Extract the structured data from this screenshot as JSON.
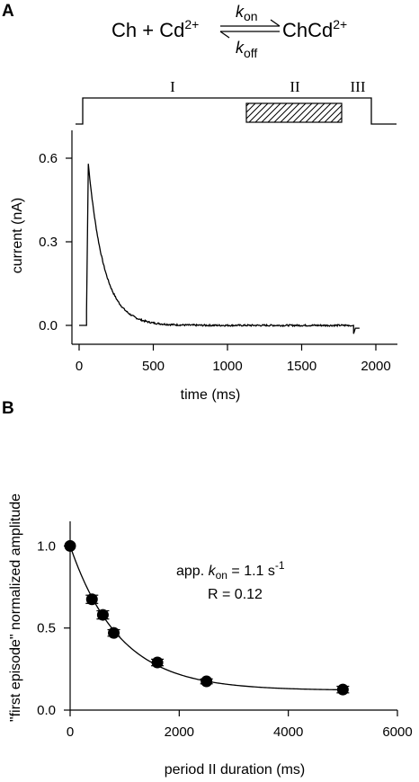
{
  "panels": {
    "a": {
      "label": "A"
    },
    "b": {
      "label": "B"
    }
  },
  "scheme": {
    "left": "Ch + Cd",
    "left_sup": "2+",
    "right": "ChCd",
    "right_sup": "2+",
    "k": "k",
    "on_sub": "on",
    "off_sub": "off"
  },
  "protocol": {
    "period_labels": [
      "I",
      "II",
      "III"
    ]
  },
  "chart_data": [
    {
      "type": "line",
      "panel": "A",
      "xlabel": "time (ms)",
      "ylabel": "current (nA)",
      "xlim": [
        -80,
        2000
      ],
      "ylim": [
        -0.06,
        0.7
      ],
      "xticks": [
        0,
        500,
        1000,
        1500,
        2000
      ],
      "yticks": [
        0.0,
        0.3,
        0.6
      ],
      "ytick_labels": [
        "0.0",
        "0.3",
        "0.6"
      ],
      "series": [
        {
          "baseline_before": 0.0,
          "step_on_ms": 50,
          "peak_ms": 62,
          "peak_nA": 0.58,
          "decay_tau_ms": 105,
          "step_off_ms": 1850,
          "end_ms": 1890,
          "points": [
            [
              0,
              0.0
            ],
            [
              50,
              0.0
            ],
            [
              50,
              0.05
            ],
            [
              62,
              0.58
            ],
            [
              100,
              0.4
            ],
            [
              150,
              0.27
            ],
            [
              200,
              0.18
            ],
            [
              300,
              0.08
            ],
            [
              400,
              0.04
            ],
            [
              500,
              0.02
            ],
            [
              700,
              0.01
            ],
            [
              1000,
              0.005
            ],
            [
              1500,
              0.002
            ],
            [
              1830,
              0.0
            ]
          ]
        }
      ]
    },
    {
      "type": "scatter",
      "panel": "B",
      "xlabel": "period II duration (ms)",
      "ylabel": "\"first episode\" normalized amplitude",
      "xlim": [
        0,
        6000
      ],
      "ylim": [
        0,
        1.15
      ],
      "xticks": [
        0,
        2000,
        4000,
        6000
      ],
      "yticks": [
        0.0,
        0.5,
        1.0
      ],
      "ytick_labels": [
        "0.0",
        "0.5",
        "1.0"
      ],
      "series": [
        {
          "x": [
            0,
            400,
            600,
            800,
            1600,
            2500,
            5000
          ],
          "y": [
            1.0,
            0.675,
            0.58,
            0.47,
            0.29,
            0.175,
            0.125
          ],
          "err": [
            0.0,
            0.025,
            0.025,
            0.02,
            0.02,
            0.015,
            0.02
          ]
        }
      ],
      "fit": {
        "model": "exponential",
        "k_on_per_s": 1.1,
        "R": 0.12,
        "label_prefix": "app. ",
        "label_k": "k",
        "label_sub": "on",
        "label_value": " = 1.1 s",
        "label_exp": "-1",
        "r_label": "R = 0.12"
      }
    }
  ]
}
